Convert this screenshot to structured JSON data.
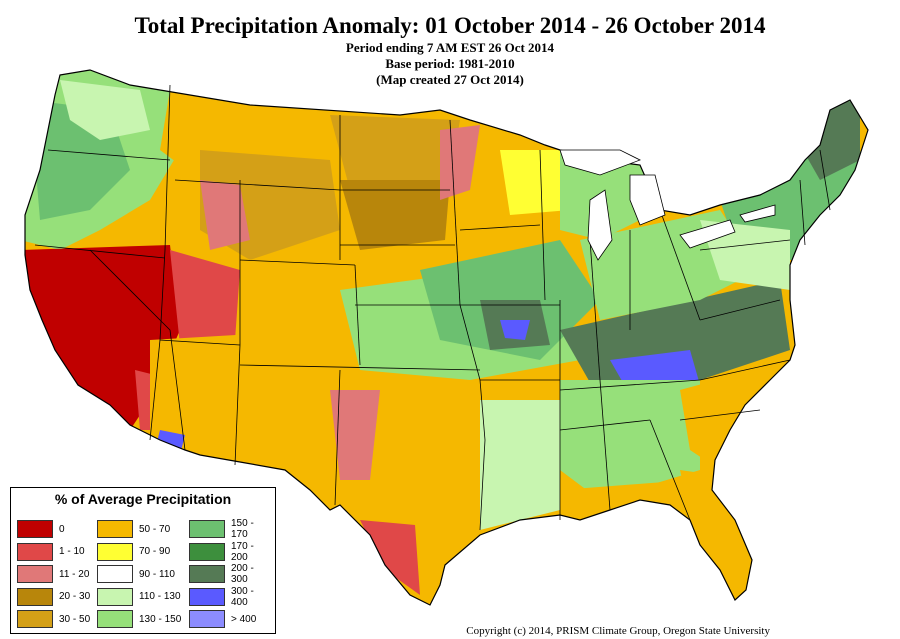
{
  "title": "Total Precipitation Anomaly: 01 October 2014 - 26 October 2014",
  "subtitle_lines": [
    "Period ending 7 AM EST 26 Oct 2014",
    "Base period: 1981-2010",
    "(Map created 27 Oct 2014)"
  ],
  "legend": {
    "title": "% of Average Precipitation",
    "items": [
      {
        "label": "0",
        "color": "#c00000"
      },
      {
        "label": "1 - 10",
        "color": "#e04848"
      },
      {
        "label": "11 - 20",
        "color": "#e07878"
      },
      {
        "label": "20 - 30",
        "color": "#b8860b"
      },
      {
        "label": "30 - 50",
        "color": "#d4a017"
      },
      {
        "label": "50 - 70",
        "color": "#f5b800"
      },
      {
        "label": "70 - 90",
        "color": "#ffff33"
      },
      {
        "label": "90 - 110",
        "color": "#ffffff"
      },
      {
        "label": "110 - 130",
        "color": "#c8f5b0"
      },
      {
        "label": "130 - 150",
        "color": "#96e07a"
      },
      {
        "label": "150 - 170",
        "color": "#6cc070"
      },
      {
        "label": "170 - 200",
        "color": "#3d8f3d"
      },
      {
        "label": "200 - 300",
        "color": "#557a55"
      },
      {
        "label": "300 - 400",
        "color": "#5a5aff"
      },
      {
        "label": "> 400",
        "color": "#8c8cff"
      }
    ]
  },
  "copyright": "Copyright (c) 2014, PRISM Climate Group, Oregon State University"
}
